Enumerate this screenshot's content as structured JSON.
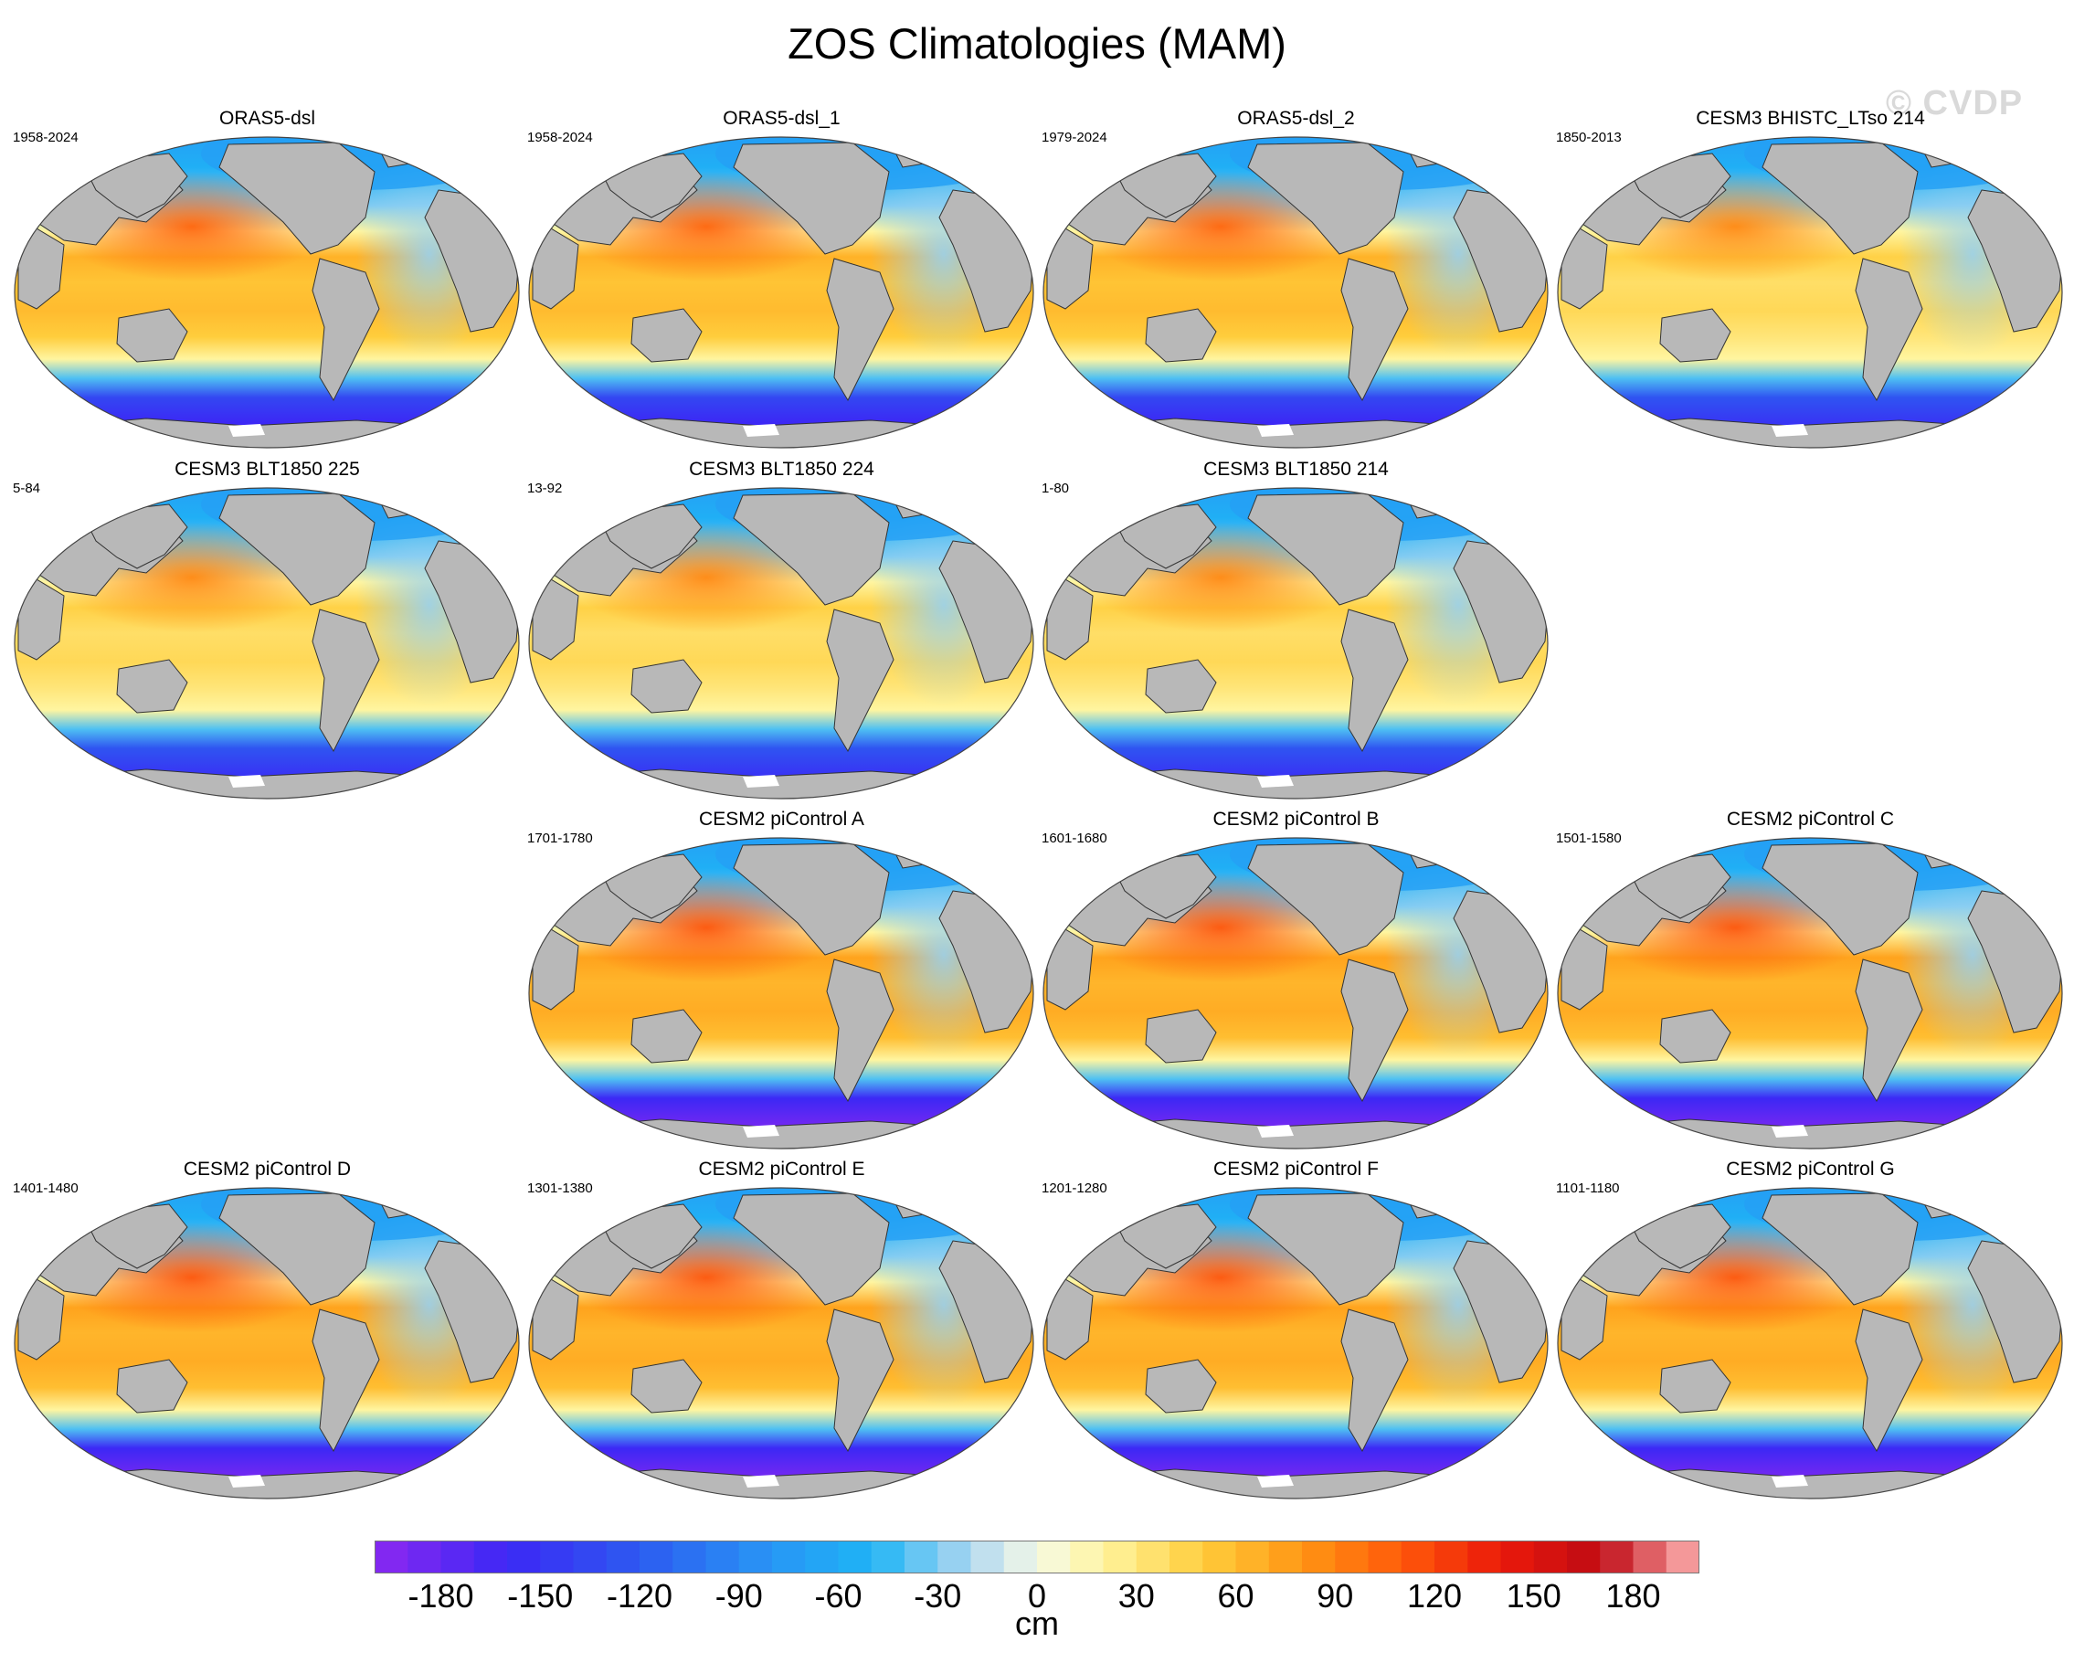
{
  "title": "ZOS Climatologies (MAM)",
  "watermark": "© CVDP",
  "panels": [
    {
      "title": "ORAS5-dsl",
      "years": "1958-2024",
      "col": 0,
      "row": 0,
      "style": "obs"
    },
    {
      "title": "ORAS5-dsl_1",
      "years": "1958-2024",
      "col": 1,
      "row": 0,
      "style": "obs"
    },
    {
      "title": "ORAS5-dsl_2",
      "years": "1979-2024",
      "col": 2,
      "row": 0,
      "style": "obs"
    },
    {
      "title": "CESM3 BHISTC_LTso 214",
      "years": "1850-2013",
      "col": 3,
      "row": 0,
      "style": "cesm3"
    },
    {
      "title": "CESM3 BLT1850 225",
      "years": "5-84",
      "col": 0,
      "row": 1,
      "style": "cesm3"
    },
    {
      "title": "CESM3 BLT1850 224",
      "years": "13-92",
      "col": 1,
      "row": 1,
      "style": "cesm3"
    },
    {
      "title": "CESM3 BLT1850 214",
      "years": "1-80",
      "col": 2,
      "row": 1,
      "style": "cesm3"
    },
    {
      "title": "CESM2 piControl A",
      "years": "1701-1780",
      "col": 1,
      "row": 2,
      "style": "cesm2"
    },
    {
      "title": "CESM2 piControl B",
      "years": "1601-1680",
      "col": 2,
      "row": 2,
      "style": "cesm2"
    },
    {
      "title": "CESM2 piControl C",
      "years": "1501-1580",
      "col": 3,
      "row": 2,
      "style": "cesm2"
    },
    {
      "title": "CESM2 piControl D",
      "years": "1401-1480",
      "col": 0,
      "row": 3,
      "style": "cesm2"
    },
    {
      "title": "CESM2 piControl E",
      "years": "1301-1380",
      "col": 1,
      "row": 3,
      "style": "cesm2"
    },
    {
      "title": "CESM2 piControl F",
      "years": "1201-1280",
      "col": 2,
      "row": 3,
      "style": "cesm2"
    },
    {
      "title": "CESM2 piControl G",
      "years": "1101-1180",
      "col": 3,
      "row": 3,
      "style": "cesm2"
    }
  ],
  "colorbar": {
    "unit": "cm",
    "min": -200,
    "max": 200,
    "step": 10,
    "tick_labels": [
      "-180",
      "-150",
      "-120",
      "-90",
      "-60",
      "-30",
      "0",
      "30",
      "60",
      "90",
      "120",
      "150",
      "180"
    ],
    "tick_values": [
      -180,
      -150,
      -120,
      -90,
      -60,
      -30,
      0,
      30,
      60,
      90,
      120,
      150,
      180
    ]
  },
  "colors": {
    "land": "#b8b8b8",
    "ice_shelf": "#ffffff",
    "coast": "#333333"
  }
}
